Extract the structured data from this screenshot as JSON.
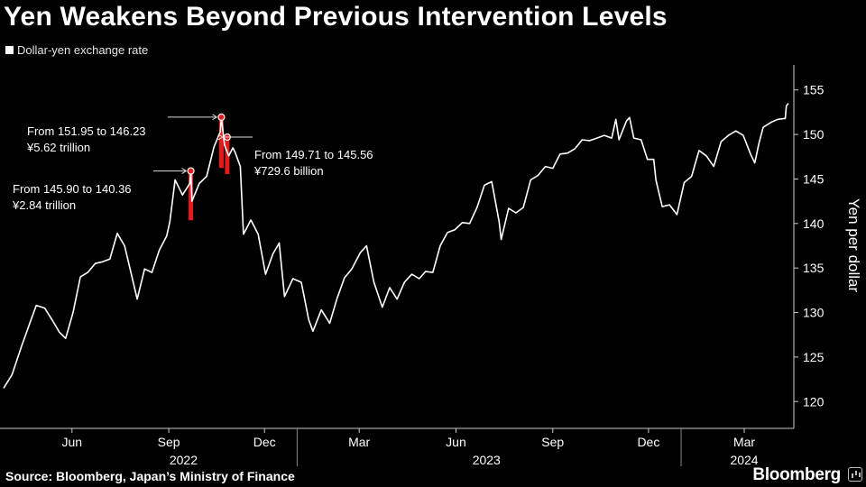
{
  "header": {
    "title": "Yen Weakens Beyond Previous Intervention Levels",
    "legend_label": "Dollar-yen exchange rate"
  },
  "footer": {
    "source": "Source: Bloomberg, Japan’s Ministry of Finance",
    "brand": "Bloomberg"
  },
  "colors": {
    "background": "#000000",
    "series": "#ffffff",
    "intervention": "#e8191c",
    "axis": "#cccccc"
  },
  "chart_data": {
    "type": "line",
    "title": "Yen Weakens Beyond Previous Intervention Levels",
    "ylabel": "Yen per dollar",
    "xlabel": "",
    "ylim": [
      118,
      157
    ],
    "y_ticks": [
      120,
      125,
      130,
      135,
      140,
      145,
      150,
      155
    ],
    "x_range": [
      "2022-03-28",
      "2024-04-12"
    ],
    "x_tick_labels": [
      {
        "label": "Jun",
        "date": "2022-06-01"
      },
      {
        "label": "Sep",
        "date": "2022-09-01"
      },
      {
        "label": "Dec",
        "date": "2022-12-01"
      },
      {
        "label": "Mar",
        "date": "2023-03-01"
      },
      {
        "label": "Jun",
        "date": "2023-06-01"
      },
      {
        "label": "Sep",
        "date": "2023-09-01"
      },
      {
        "label": "Dec",
        "date": "2023-12-01"
      },
      {
        "label": "Mar",
        "date": "2024-03-01"
      }
    ],
    "year_labels": [
      {
        "label": "2022",
        "date": "2022-09-15"
      },
      {
        "label": "2023",
        "date": "2023-06-30"
      },
      {
        "label": "2024",
        "date": "2024-03-01"
      }
    ],
    "year_dividers": [
      "2023-01-01",
      "2024-01-01"
    ],
    "legend": "top-left",
    "grid": false,
    "series": [
      {
        "name": "Dollar-yen exchange rate",
        "points": [
          [
            "2022-03-28",
            121.5
          ],
          [
            "2022-04-05",
            123.0
          ],
          [
            "2022-04-14",
            126.2
          ],
          [
            "2022-04-21",
            128.5
          ],
          [
            "2022-04-28",
            130.8
          ],
          [
            "2022-05-06",
            130.5
          ],
          [
            "2022-05-13",
            129.2
          ],
          [
            "2022-05-20",
            127.8
          ],
          [
            "2022-05-26",
            127.1
          ],
          [
            "2022-06-02",
            130.0
          ],
          [
            "2022-06-09",
            134.0
          ],
          [
            "2022-06-16",
            134.5
          ],
          [
            "2022-06-23",
            135.5
          ],
          [
            "2022-06-30",
            135.7
          ],
          [
            "2022-07-07",
            136.0
          ],
          [
            "2022-07-14",
            138.9
          ],
          [
            "2022-07-21",
            137.5
          ],
          [
            "2022-07-28",
            134.0
          ],
          [
            "2022-08-02",
            131.5
          ],
          [
            "2022-08-09",
            134.9
          ],
          [
            "2022-08-16",
            134.5
          ],
          [
            "2022-08-23",
            137.0
          ],
          [
            "2022-08-30",
            138.6
          ],
          [
            "2022-09-02",
            140.2
          ],
          [
            "2022-09-07",
            144.9
          ],
          [
            "2022-09-14",
            143.2
          ],
          [
            "2022-09-21",
            144.5
          ],
          [
            "2022-09-22",
            145.9
          ],
          [
            "2022-09-23",
            142.5
          ],
          [
            "2022-09-30",
            144.5
          ],
          [
            "2022-10-07",
            145.3
          ],
          [
            "2022-10-14",
            148.6
          ],
          [
            "2022-10-20",
            150.3
          ],
          [
            "2022-10-21",
            151.95
          ],
          [
            "2022-10-24",
            148.8
          ],
          [
            "2022-10-28",
            147.6
          ],
          [
            "2022-11-01",
            148.5
          ],
          [
            "2022-11-03",
            148.0
          ],
          [
            "2022-11-08",
            146.4
          ],
          [
            "2022-11-11",
            138.8
          ],
          [
            "2022-11-18",
            140.4
          ],
          [
            "2022-11-25",
            138.8
          ],
          [
            "2022-12-02",
            134.3
          ],
          [
            "2022-12-09",
            136.6
          ],
          [
            "2022-12-15",
            137.8
          ],
          [
            "2022-12-20",
            131.8
          ],
          [
            "2022-12-28",
            133.8
          ],
          [
            "2023-01-05",
            133.4
          ],
          [
            "2023-01-12",
            129.2
          ],
          [
            "2023-01-16",
            127.9
          ],
          [
            "2023-01-24",
            130.3
          ],
          [
            "2023-02-01",
            128.8
          ],
          [
            "2023-02-08",
            131.6
          ],
          [
            "2023-02-15",
            133.9
          ],
          [
            "2023-02-22",
            134.9
          ],
          [
            "2023-03-02",
            136.7
          ],
          [
            "2023-03-08",
            137.5
          ],
          [
            "2023-03-15",
            133.4
          ],
          [
            "2023-03-23",
            130.6
          ],
          [
            "2023-03-30",
            132.8
          ],
          [
            "2023-04-06",
            131.5
          ],
          [
            "2023-04-13",
            133.4
          ],
          [
            "2023-04-20",
            134.3
          ],
          [
            "2023-04-27",
            133.8
          ],
          [
            "2023-05-03",
            134.6
          ],
          [
            "2023-05-10",
            134.5
          ],
          [
            "2023-05-17",
            137.5
          ],
          [
            "2023-05-24",
            139.0
          ],
          [
            "2023-05-31",
            139.3
          ],
          [
            "2023-06-07",
            140.1
          ],
          [
            "2023-06-14",
            140.0
          ],
          [
            "2023-06-21",
            141.8
          ],
          [
            "2023-06-28",
            144.3
          ],
          [
            "2023-07-05",
            144.7
          ],
          [
            "2023-07-12",
            140.2
          ],
          [
            "2023-07-14",
            138.2
          ],
          [
            "2023-07-21",
            141.7
          ],
          [
            "2023-07-28",
            141.2
          ],
          [
            "2023-08-04",
            141.8
          ],
          [
            "2023-08-11",
            144.9
          ],
          [
            "2023-08-18",
            145.4
          ],
          [
            "2023-08-25",
            146.4
          ],
          [
            "2023-09-01",
            146.2
          ],
          [
            "2023-09-08",
            147.8
          ],
          [
            "2023-09-15",
            147.9
          ],
          [
            "2023-09-22",
            148.4
          ],
          [
            "2023-09-29",
            149.4
          ],
          [
            "2023-10-06",
            149.3
          ],
          [
            "2023-10-13",
            149.6
          ],
          [
            "2023-10-20",
            149.9
          ],
          [
            "2023-10-27",
            149.6
          ],
          [
            "2023-10-31",
            151.7
          ],
          [
            "2023-11-03",
            149.4
          ],
          [
            "2023-11-10",
            151.5
          ],
          [
            "2023-11-13",
            151.9
          ],
          [
            "2023-11-17",
            149.6
          ],
          [
            "2023-11-24",
            149.4
          ],
          [
            "2023-11-30",
            147.2
          ],
          [
            "2023-12-06",
            147.2
          ],
          [
            "2023-12-08",
            144.9
          ],
          [
            "2023-12-14",
            141.9
          ],
          [
            "2023-12-21",
            142.1
          ],
          [
            "2023-12-28",
            141.0
          ],
          [
            "2024-01-04",
            144.6
          ],
          [
            "2024-01-11",
            145.3
          ],
          [
            "2024-01-18",
            148.2
          ],
          [
            "2024-01-25",
            147.6
          ],
          [
            "2024-02-01",
            146.4
          ],
          [
            "2024-02-08",
            149.2
          ],
          [
            "2024-02-15",
            149.9
          ],
          [
            "2024-02-22",
            150.4
          ],
          [
            "2024-02-29",
            149.9
          ],
          [
            "2024-03-07",
            147.8
          ],
          [
            "2024-03-11",
            146.8
          ],
          [
            "2024-03-15",
            149.0
          ],
          [
            "2024-03-19",
            150.8
          ],
          [
            "2024-03-27",
            151.4
          ],
          [
            "2024-04-02",
            151.7
          ],
          [
            "2024-04-09",
            151.8
          ],
          [
            "2024-04-10",
            153.2
          ],
          [
            "2024-04-12",
            153.5
          ]
        ]
      }
    ],
    "interventions": [
      {
        "date": "2022-09-22",
        "from": 145.9,
        "to": 140.36,
        "label": "From 145.90 to 140.36",
        "amount": "¥2.84 trillion"
      },
      {
        "date": "2022-10-21",
        "from": 151.95,
        "to": 146.23,
        "label": "From 151.95 to 146.23",
        "amount": "¥5.62 trillion"
      },
      {
        "date": "2022-10-24",
        "from": 149.71,
        "to": 145.56,
        "label": "From 149.71 to 145.56",
        "amount": "¥729.6 billion"
      }
    ]
  }
}
